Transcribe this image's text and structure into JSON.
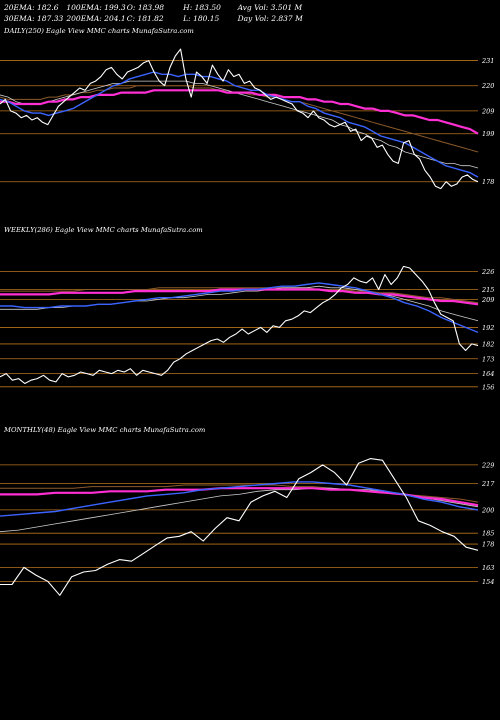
{
  "header": {
    "row1": [
      "20EMA: 182.6",
      "100EMA: 199.3",
      "O: 183.98",
      "H: 183.50",
      "Avg Vol: 3.501 M"
    ],
    "row2": [
      "30EMA: 187.33",
      "200EMA: 204.1",
      "C: 181.82",
      "L: 180.15",
      "Day Vol: 2.837 M"
    ]
  },
  "colors": {
    "grid": "#b8731c",
    "price": "#ffffff",
    "ema_fast": "#3b63ff",
    "ema_long": "#ff2fd4",
    "ema_mid": "#cccccc",
    "ema_brown": "#8b5a2b"
  },
  "chart_data": [
    {
      "type": "line",
      "title": "DAILY(250) Eagle  View  MMC charts MunafaSutra.com",
      "yticks": [
        231,
        220,
        209,
        199,
        178
      ],
      "ylim": [
        170,
        240
      ],
      "price": [
        212,
        214,
        209,
        208,
        206,
        207,
        205,
        206,
        204,
        203,
        207,
        211,
        213,
        215,
        217,
        219,
        218,
        221,
        222,
        224,
        227,
        228,
        225,
        223,
        226,
        227,
        228,
        230,
        231,
        226,
        222,
        220,
        228,
        233,
        236,
        223,
        215,
        226,
        224,
        221,
        229,
        225,
        222,
        227,
        224,
        225,
        221,
        222,
        219,
        218,
        216,
        214,
        215,
        214,
        213,
        212,
        209,
        208,
        206,
        209,
        206,
        205,
        203,
        202,
        203,
        204,
        200,
        201,
        196,
        198,
        197,
        193,
        194,
        190,
        187,
        186,
        195,
        196,
        190,
        188,
        183,
        180,
        176,
        175,
        178,
        176,
        177,
        180,
        181,
        179,
        178
      ],
      "ema_fast": [
        214,
        213,
        211,
        209,
        208,
        208,
        207,
        208,
        209,
        210,
        212,
        214,
        216,
        218,
        220,
        221,
        223,
        224,
        225,
        226,
        225,
        225,
        224,
        225,
        225,
        224,
        224,
        223,
        222,
        220,
        219,
        218,
        218,
        216,
        215,
        214,
        213,
        213,
        211,
        210,
        208,
        207,
        206,
        204,
        203,
        202,
        200,
        198,
        197,
        196,
        195,
        193,
        191,
        189,
        187,
        185,
        184,
        183,
        182,
        180
      ],
      "ema_mid": [
        216,
        215,
        213,
        212,
        212,
        212,
        213,
        214,
        215,
        216,
        217,
        218,
        219,
        220,
        221,
        221,
        222,
        222,
        222,
        222,
        222,
        222,
        222,
        222,
        221,
        221,
        220,
        219,
        218,
        217,
        216,
        215,
        214,
        213,
        212,
        211,
        210,
        209,
        208,
        207,
        206,
        205,
        203,
        202,
        200,
        199,
        197,
        196,
        194,
        193,
        191,
        190,
        189,
        188,
        187,
        186,
        186,
        185,
        185,
        184
      ],
      "ema_long": [
        213,
        213,
        212,
        212,
        212,
        212,
        213,
        213,
        214,
        214,
        215,
        215,
        216,
        216,
        216,
        217,
        217,
        217,
        217,
        218,
        218,
        218,
        218,
        218,
        218,
        218,
        218,
        218,
        217,
        217,
        217,
        217,
        216,
        216,
        216,
        215,
        215,
        215,
        214,
        214,
        213,
        213,
        212,
        212,
        211,
        210,
        210,
        209,
        209,
        208,
        207,
        207,
        206,
        205,
        205,
        204,
        203,
        202,
        201,
        199
      ],
      "ema_brown": [
        215,
        214,
        214,
        214,
        214,
        214,
        215,
        215,
        216,
        216,
        217,
        217,
        218,
        218,
        219,
        219,
        219,
        220,
        220,
        220,
        220,
        220,
        220,
        220,
        219,
        219,
        219,
        218,
        218,
        217,
        217,
        216,
        216,
        215,
        215,
        214,
        213,
        213,
        212,
        211,
        210,
        209,
        208,
        207,
        206,
        205,
        204,
        203,
        202,
        201,
        200,
        199,
        198,
        197,
        196,
        195,
        194,
        193,
        192,
        191
      ]
    },
    {
      "type": "line",
      "title": "WEEKLY(286) Eagle  View  MMC charts MunafaSutra.com",
      "yticks": [
        226,
        215,
        209,
        192,
        182,
        173,
        164,
        156
      ],
      "ylim": [
        148,
        245
      ],
      "price": [
        162,
        164,
        160,
        161,
        158,
        160,
        161,
        163,
        160,
        159,
        164,
        162,
        163,
        165,
        164,
        163,
        166,
        165,
        164,
        166,
        165,
        167,
        163,
        166,
        165,
        164,
        163,
        166,
        171,
        173,
        176,
        178,
        180,
        182,
        184,
        185,
        183,
        186,
        188,
        191,
        188,
        190,
        192,
        189,
        193,
        192,
        196,
        197,
        199,
        202,
        201,
        204,
        207,
        209,
        212,
        216,
        218,
        222,
        220,
        219,
        222,
        215,
        224,
        218,
        222,
        229,
        228,
        224,
        220,
        215,
        207,
        200,
        198,
        196,
        182,
        178,
        182,
        181
      ],
      "ema_fast": [
        205,
        205,
        204,
        204,
        204,
        205,
        205,
        205,
        206,
        206,
        207,
        208,
        209,
        210,
        210,
        211,
        212,
        213,
        214,
        214,
        215,
        215,
        216,
        217,
        217,
        218,
        219,
        218,
        217,
        216,
        214,
        212,
        210,
        207,
        205,
        202,
        198,
        195,
        192,
        189
      ],
      "ema_mid": [
        203,
        203,
        203,
        203,
        204,
        204,
        205,
        205,
        206,
        206,
        207,
        208,
        208,
        209,
        210,
        210,
        211,
        212,
        212,
        213,
        214,
        214,
        215,
        216,
        216,
        216,
        217,
        216,
        216,
        215,
        214,
        212,
        211,
        209,
        207,
        205,
        202,
        200,
        198,
        196
      ],
      "ema_long": [
        212,
        212,
        212,
        212,
        212,
        213,
        213,
        213,
        213,
        213,
        213,
        214,
        214,
        214,
        214,
        214,
        214,
        214,
        215,
        215,
        215,
        215,
        215,
        215,
        215,
        215,
        215,
        214,
        214,
        213,
        213,
        212,
        212,
        211,
        210,
        209,
        208,
        208,
        207,
        206
      ],
      "ema_brown": [
        214,
        214,
        214,
        214,
        214,
        214,
        214,
        215,
        215,
        215,
        215,
        215,
        215,
        216,
        216,
        216,
        216,
        216,
        216,
        216,
        216,
        216,
        216,
        216,
        216,
        216,
        215,
        215,
        215,
        214,
        214,
        213,
        213,
        212,
        211,
        210,
        210,
        209,
        208,
        207
      ]
    },
    {
      "type": "line",
      "title": "MONTHLY(48) Eagle  View  MMC charts MunafaSutra.com",
      "yticks": [
        229,
        217,
        200,
        185,
        178,
        163,
        154
      ],
      "ylim": [
        142,
        245
      ],
      "price": [
        152,
        152,
        163,
        158,
        154,
        145,
        157,
        160,
        161,
        165,
        168,
        167,
        172,
        177,
        182,
        183,
        186,
        180,
        188,
        195,
        193,
        205,
        209,
        212,
        208,
        220,
        224,
        229,
        224,
        216,
        230,
        233,
        232,
        220,
        208,
        193,
        190,
        186,
        183,
        176,
        174
      ],
      "ema_fast": [
        196,
        197,
        198,
        199,
        201,
        203,
        205,
        207,
        209,
        210,
        211,
        213,
        214,
        215,
        216,
        217,
        218,
        218,
        217,
        216,
        214,
        212,
        210,
        207,
        205,
        202,
        200
      ],
      "ema_mid": [
        186,
        187,
        189,
        191,
        193,
        195,
        197,
        199,
        201,
        203,
        205,
        207,
        209,
        210,
        212,
        213,
        213,
        214,
        214,
        213,
        213,
        212,
        210,
        208,
        206,
        204,
        202
      ],
      "ema_long": [
        210,
        210,
        210,
        211,
        211,
        211,
        212,
        212,
        212,
        213,
        213,
        213,
        214,
        214,
        214,
        214,
        214,
        214,
        213,
        213,
        212,
        211,
        210,
        208,
        207,
        205,
        203
      ],
      "ema_brown": [
        214,
        214,
        214,
        214,
        214,
        215,
        215,
        215,
        215,
        215,
        216,
        216,
        216,
        216,
        216,
        216,
        215,
        215,
        214,
        213,
        212,
        211,
        210,
        209,
        208,
        207,
        205
      ]
    }
  ]
}
